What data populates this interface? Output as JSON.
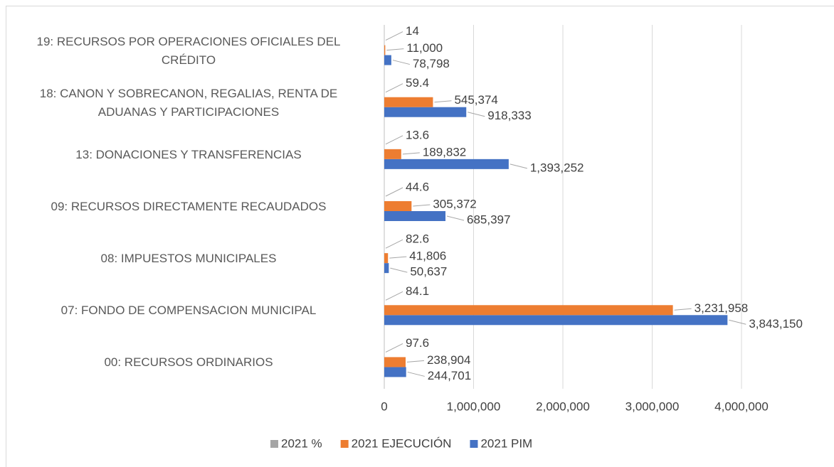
{
  "chart_data": {
    "type": "bar",
    "orientation": "horizontal",
    "categories": [
      "00: RECURSOS ORDINARIOS",
      "07: FONDO DE COMPENSACION MUNICIPAL",
      "08: IMPUESTOS MUNICIPALES",
      "09: RECURSOS DIRECTAMENTE RECAUDADOS",
      "13: DONACIONES Y TRANSFERENCIAS",
      "18: CANON Y SOBRECANON, REGALIAS, RENTA DE ADUANAS Y PARTICIPACIONES",
      "19: RECURSOS POR OPERACIONES OFICIALES DEL CRÉDITO"
    ],
    "series": [
      {
        "name": "2021 PIM",
        "color": "#4472c4",
        "values": [
          244701,
          3843150,
          50637,
          685397,
          1393252,
          918333,
          78798
        ],
        "value_labels": [
          "244,701",
          "3,843,150",
          "50,637",
          "685,397",
          "1,393,252",
          "918,333",
          "78,798"
        ]
      },
      {
        "name": "2021 EJECUCIÓN",
        "color": "#ed7d31",
        "values": [
          238904,
          3231958,
          41806,
          305372,
          189832,
          545374,
          11000
        ],
        "value_labels": [
          "238,904",
          "3,231,958",
          "41,806",
          "305,372",
          "189,832",
          "545,374",
          "11,000"
        ]
      },
      {
        "name": "2021 %",
        "color": "#a5a5a5",
        "values": [
          97.6,
          84.1,
          82.6,
          44.6,
          13.6,
          59.4,
          14
        ]
      }
    ],
    "xlim": [
      0,
      4500000
    ],
    "xticks": [
      0,
      {
        "value": 1000000,
        "label": "1,000,000"
      },
      {
        "value": 2000000,
        "label": "2,000,000"
      },
      {
        "value": 3000000,
        "label": "3,000,000"
      },
      {
        "value": 4000000,
        "label": "4,000,000"
      }
    ],
    "grid": true,
    "legend": "bottom"
  }
}
